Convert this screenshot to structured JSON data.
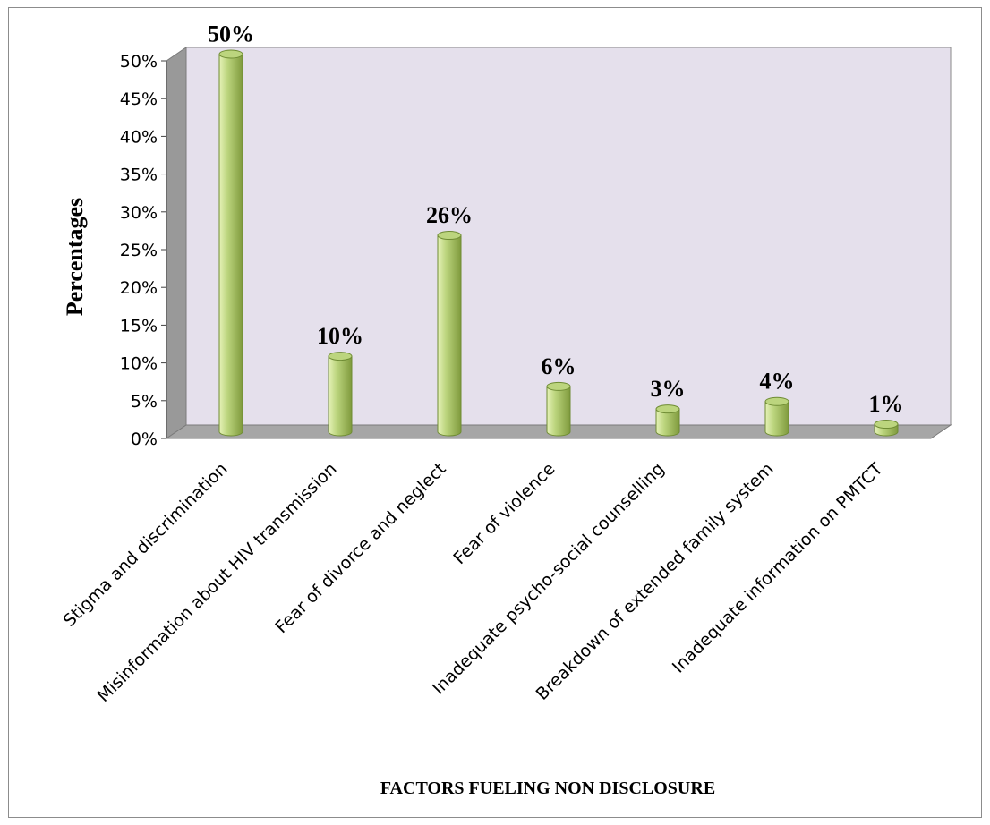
{
  "chart_data": {
    "type": "bar",
    "title": "",
    "xlabel": "FACTORS FUELING NON DISCLOSURE",
    "ylabel": "Percentages",
    "ylim": [
      0,
      50
    ],
    "yticks": [
      "0%",
      "5%",
      "10%",
      "15%",
      "20%",
      "25%",
      "30%",
      "35%",
      "40%",
      "45%",
      "50%"
    ],
    "categories": [
      "Stigma and discrimination",
      "Misinformation about HIV transmission",
      "Fear of divorce and neglect",
      "Fear of violence",
      "Inadequate psycho-social counselling",
      "Breakdown of extended family system",
      "Inadequate information on PMTCT"
    ],
    "values": [
      50,
      10,
      26,
      6,
      3,
      4,
      1
    ],
    "data_labels": [
      "50%",
      "10%",
      "26%",
      "6%",
      "3%",
      "4%",
      "1%"
    ],
    "grid": false,
    "legend": "none",
    "colors": {
      "bar_light": "#e6f2b8",
      "bar_mid": "#bcd57e",
      "bar_dark": "#7f9a3c",
      "bar_outline": "#6f8c34",
      "back_wall": "#e5e0ec",
      "side_wall": "#999999",
      "floor": "#a6a6a6"
    }
  }
}
